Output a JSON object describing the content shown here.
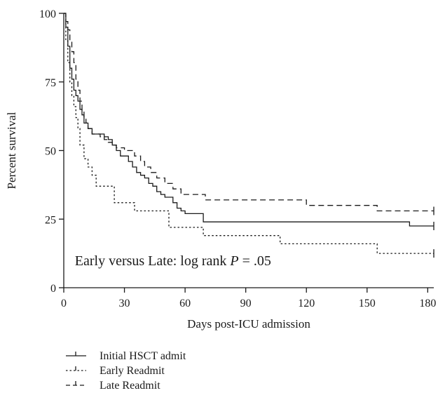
{
  "chart_data": {
    "type": "line",
    "step": true,
    "title": "",
    "xlabel": "Days post-ICU admission",
    "ylabel": "Percent survival",
    "xlim": [
      0,
      183
    ],
    "ylim": [
      0,
      100
    ],
    "xticks": [
      0,
      30,
      60,
      90,
      120,
      150,
      180
    ],
    "yticks": [
      0,
      25,
      50,
      75,
      100
    ],
    "grid": false,
    "legend_position": "bottom-left",
    "annotation": {
      "prefix": "Early versus Late: log rank ",
      "italic": "P",
      "suffix": " = .05",
      "x": 2,
      "y": 10
    },
    "series": [
      {
        "name": "Initial HSCT admit",
        "dash": "solid",
        "censor_x": [
          183
        ],
        "x": [
          0,
          1,
          2,
          3,
          4,
          5,
          6,
          7,
          8,
          9,
          10,
          12,
          14,
          16,
          18,
          20,
          22,
          24,
          26,
          28,
          30,
          32,
          34,
          36,
          38,
          40,
          42,
          44,
          46,
          48,
          50,
          52,
          54,
          56,
          58,
          60,
          69,
          171,
          183
        ],
        "y": [
          100,
          95,
          88,
          80,
          76,
          72,
          70,
          68,
          65,
          63,
          60,
          58,
          56,
          56,
          56,
          55,
          54,
          52,
          50,
          48,
          48,
          46,
          44,
          42,
          41,
          40,
          38,
          37,
          35,
          34,
          33,
          33,
          31,
          29,
          28,
          27,
          24,
          22.5,
          22.5
        ]
      },
      {
        "name": "Early Readmit",
        "dash": "dotted",
        "censor_x": [
          183
        ],
        "x": [
          0,
          1,
          2,
          3,
          4,
          5,
          6,
          7,
          8,
          10,
          12,
          14,
          16,
          25,
          35,
          52,
          69,
          107,
          155,
          183
        ],
        "y": [
          100,
          90,
          82,
          75,
          70,
          66,
          62,
          58,
          52,
          47,
          44,
          41,
          37,
          31,
          28,
          22,
          19,
          16,
          12.5,
          12.5
        ]
      },
      {
        "name": "Late Readmit",
        "dash": "dashed",
        "censor_x": [
          183
        ],
        "x": [
          0,
          1,
          2,
          3,
          4,
          5,
          6,
          7,
          8,
          9,
          10,
          11,
          12,
          14,
          16,
          18,
          20,
          22,
          24,
          26,
          30,
          35,
          38,
          40,
          43,
          46,
          50,
          54,
          58,
          62,
          70,
          120,
          155,
          183
        ],
        "y": [
          100,
          97,
          94,
          90,
          86,
          82,
          76,
          72,
          68,
          64,
          62,
          60,
          58,
          56,
          56,
          55,
          54,
          53,
          52,
          51,
          50,
          48,
          46,
          44,
          42,
          40,
          38,
          36,
          34,
          34,
          32,
          30,
          28,
          28
        ]
      }
    ]
  }
}
